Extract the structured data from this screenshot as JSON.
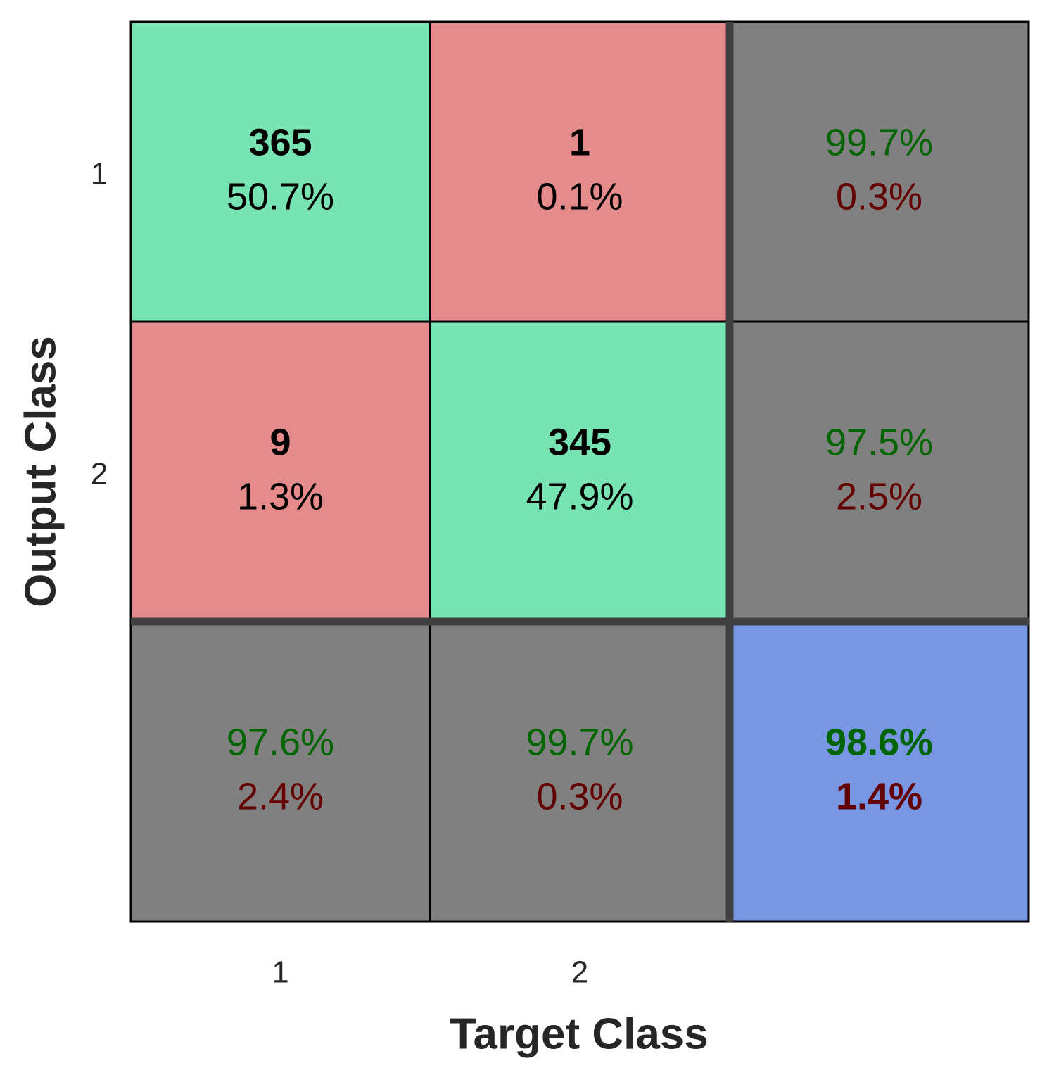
{
  "chart_data": {
    "type": "heatmap",
    "title": "",
    "xlabel": "Target Class",
    "ylabel": "Output Class",
    "x_tick_labels": [
      "1",
      "2"
    ],
    "y_tick_labels": [
      "1",
      "2"
    ],
    "cells": [
      [
        {
          "kind": "correct",
          "count": "365",
          "percent": "50.7%"
        },
        {
          "kind": "error",
          "count": "1",
          "percent": "0.1%"
        },
        {
          "kind": "summary",
          "good": "99.7%",
          "bad": "0.3%"
        }
      ],
      [
        {
          "kind": "error",
          "count": "9",
          "percent": "1.3%"
        },
        {
          "kind": "correct",
          "count": "345",
          "percent": "47.9%"
        },
        {
          "kind": "summary",
          "good": "97.5%",
          "bad": "2.5%"
        }
      ],
      [
        {
          "kind": "summary",
          "good": "97.6%",
          "bad": "2.4%"
        },
        {
          "kind": "summary",
          "good": "99.7%",
          "bad": "0.3%"
        },
        {
          "kind": "total",
          "good": "98.6%",
          "bad": "1.4%"
        }
      ]
    ],
    "colors": {
      "correct": "#78e3b3",
      "error": "#e58b8b",
      "summary": "#808080",
      "total": "#7896e3",
      "good_text": "#006400",
      "bad_text": "#640000",
      "count_text": "#000000",
      "separator": "#404040",
      "grid": "#000000"
    }
  }
}
